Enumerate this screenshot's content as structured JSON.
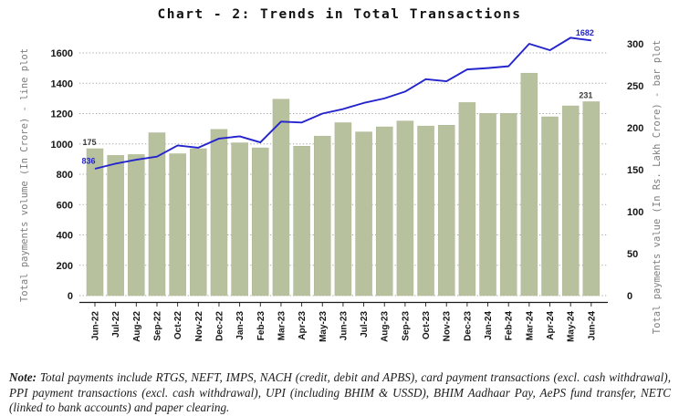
{
  "chart_data": {
    "type": "combo-bar-line",
    "title": "Chart - 2: Trends in Total Transactions",
    "categories": [
      "Jun-22",
      "Jul-22",
      "Aug-22",
      "Sep-22",
      "Oct-22",
      "Nov-22",
      "Dec-22",
      "Jan-23",
      "Feb-23",
      "Mar-23",
      "Apr-23",
      "May-23",
      "Jun-23",
      "Jul-23",
      "Aug-23",
      "Sep-23",
      "Oct-23",
      "Nov-23",
      "Dec-23",
      "Jan-24",
      "Feb-24",
      "Mar-24",
      "Apr-24",
      "May-24",
      "Jun-24"
    ],
    "series": [
      {
        "name": "Total payments value",
        "type": "bar",
        "axis": "right",
        "values": [
          175,
          167,
          168,
          194,
          169,
          175,
          198,
          182,
          176,
          234,
          178,
          190,
          206,
          195,
          201,
          208,
          202,
          203,
          230,
          217,
          217,
          265,
          213,
          226,
          231
        ]
      },
      {
        "name": "Total payments volume",
        "type": "line",
        "axis": "left",
        "values": [
          836,
          870,
          896,
          916,
          990,
          975,
          1035,
          1050,
          1010,
          1147,
          1141,
          1200,
          1230,
          1270,
          1300,
          1345,
          1427,
          1413,
          1491,
          1500,
          1512,
          1660,
          1618,
          1700,
          1682
        ]
      }
    ],
    "left_axis": {
      "label": "Total payments volume (In Crore) - line plot",
      "min": 0,
      "max": 1600,
      "ticks": [
        0,
        200,
        400,
        600,
        800,
        1000,
        1200,
        1400,
        1600
      ]
    },
    "right_axis": {
      "label": "Total payments value (In Rs. Lakh Crore) - bar plot",
      "min": 0,
      "max": 300,
      "ticks": [
        0,
        50,
        100,
        150,
        200,
        250,
        300
      ]
    },
    "grid": "horizontal-dotted",
    "legend": "none",
    "annotations": [
      {
        "text": "175",
        "month": "Jun-22",
        "series": "bar"
      },
      {
        "text": "836",
        "month": "Jun-22",
        "series": "line"
      },
      {
        "text": "1682",
        "month": "Jun-24",
        "series": "line"
      },
      {
        "text": "231",
        "month": "Jun-24",
        "series": "bar"
      }
    ]
  },
  "colors": {
    "bar": "#b8c19e",
    "bar_edge": "#adb792",
    "line": "#2424cc",
    "grid": "#a8a8a8",
    "axis_line": "#1a1a1a",
    "tick_label": "#161616",
    "bar_label": "#3a3a3a",
    "line_label": "#2424cc",
    "title": "#111111",
    "background": "#ffffff"
  },
  "note": {
    "prefix": "Note:",
    "body": " Total payments include RTGS, NEFT, IMPS, NACH (credit, debit and APBS), card payment transactions (excl. cash withdrawal), PPI payment transactions (excl. cash withdrawal), UPI (including BHIM & USSD), BHIM Aadhaar Pay, AePS fund transfer, NETC (linked to bank accounts) and paper clearing."
  }
}
